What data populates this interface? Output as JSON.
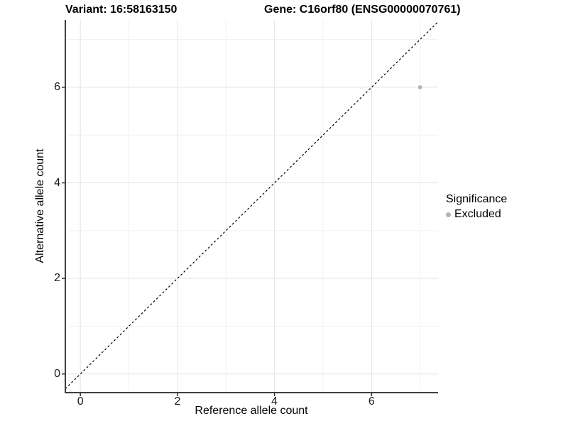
{
  "chart_data": {
    "type": "scatter",
    "title_left": "Variant: 16:58163150",
    "title_right": "Gene: C16orf80 (ENSG00000070761)",
    "xlabel": "Reference allele count",
    "ylabel": "Alternative allele count",
    "xlim": [
      -0.31,
      7.37
    ],
    "ylim": [
      -0.39,
      7.41
    ],
    "xticks": [
      0,
      2,
      4,
      6
    ],
    "yticks": [
      0,
      2,
      4,
      6
    ],
    "x_minor_gridlines": [
      1,
      3,
      5,
      7
    ],
    "y_minor_gridlines": [
      1,
      3,
      5,
      7
    ],
    "grid": "on",
    "points": [
      {
        "x": 7,
        "y": 6,
        "series": "Excluded"
      }
    ],
    "identity_line": {
      "equation": "y = x",
      "style": "dashed",
      "color": "#000000"
    },
    "legend": {
      "title": "Significance",
      "position": "right",
      "items": [
        {
          "label": "Excluded",
          "color": "#b3b3b3"
        }
      ]
    },
    "colors": {
      "point": "#b3b3b3",
      "grid_major": "#e4e4e4",
      "grid_minor": "#f1f1f1",
      "axis_line": "#404040",
      "tick_mark": "#333333",
      "background": "#ffffff"
    }
  }
}
